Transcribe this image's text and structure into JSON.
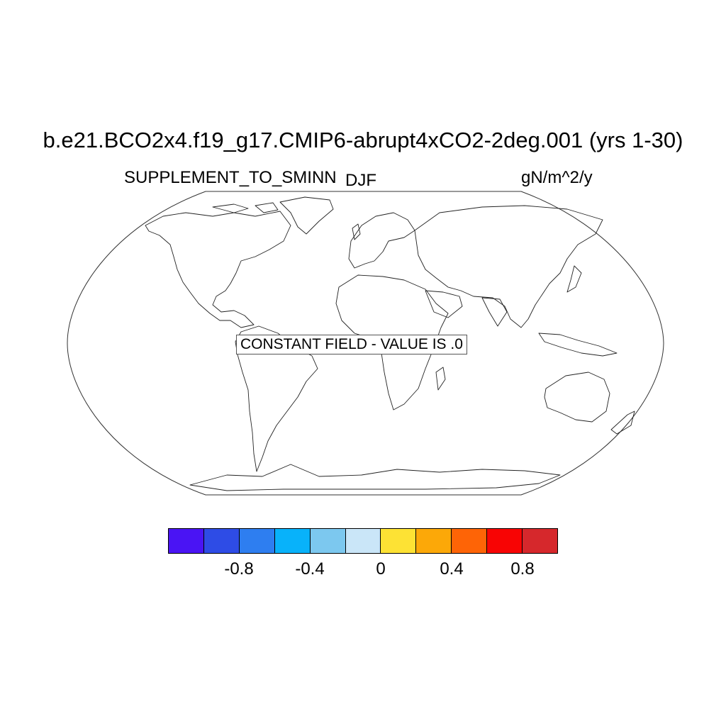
{
  "title": "b.e21.BCO2x4.f19_g17.CMIP6-abrupt4xCO2-2deg.001 (yrs 1-30)",
  "left_subtitle": "SUPPLEMENT_TO_SMINN",
  "center_subtitle": "DJF",
  "right_subtitle": "gN/m^2/y",
  "map": {
    "projection": "robinson",
    "field_note": "CONSTANT FIELD - VALUE IS .0",
    "field_value": 0.0
  },
  "colorbar": {
    "colors": [
      "#4a14f4",
      "#2e4ce6",
      "#2e7ef0",
      "#08b2fa",
      "#7cc8ef",
      "#cae6f8",
      "#fde234",
      "#fca808",
      "#fe6406",
      "#f80404",
      "#d6282c"
    ],
    "tick_labels": [
      "-0.8",
      "-0.4",
      "0",
      "0.4",
      "0.8"
    ]
  }
}
